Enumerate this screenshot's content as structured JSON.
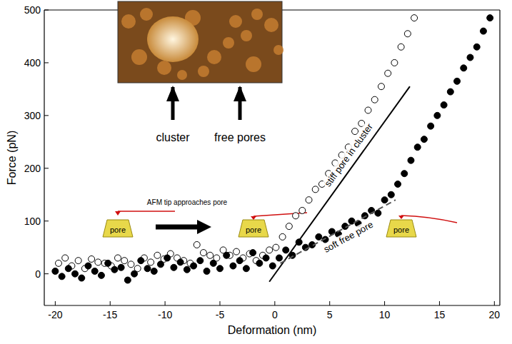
{
  "chart_data": {
    "type": "scatter",
    "x_label": "Deformation (nm)",
    "y_label": "Force (pN)",
    "xlim": [
      -21,
      20.5
    ],
    "ylim": [
      -60,
      500
    ],
    "xticks": [
      -20,
      -15,
      -10,
      -5,
      0,
      5,
      10,
      15,
      20
    ],
    "yticks": [
      0,
      100,
      200,
      300,
      400,
      500
    ],
    "grid": false,
    "series": [
      {
        "color": "#000000",
        "marker": "open-circle",
        "x": [
          -19.7,
          -19.1,
          -18.5,
          -17.9,
          -17.3,
          -16.7,
          -16.1,
          -15.5,
          -14.9,
          -14.3,
          -13.7,
          -13.1,
          -12.5,
          -11.9,
          -11.3,
          -10.7,
          -10.1,
          -9.5,
          -8.9,
          -8.3,
          -7.7,
          -7.1,
          -6.5,
          -5.9,
          -5.3,
          -4.7,
          -4.1,
          -3.5,
          -2.9,
          -2.3,
          -1.7,
          -1.1,
          -0.5,
          0.1,
          0.7,
          1.3,
          1.9,
          2.5,
          3.1,
          3.7,
          4.3,
          4.9,
          5.5,
          6.1,
          6.7,
          7.3,
          7.9,
          8.5,
          9.1,
          9.7,
          10.3,
          10.9,
          11.5,
          12.1,
          12.7
        ],
        "values": [
          20,
          30,
          15,
          25,
          10,
          28,
          22,
          20,
          15,
          30,
          25,
          18,
          10,
          30,
          22,
          35,
          28,
          38,
          30,
          25,
          20,
          55,
          40,
          35,
          30,
          45,
          35,
          42,
          30,
          38,
          25,
          35,
          45,
          50,
          70,
          90,
          110,
          120,
          140,
          160,
          170,
          190,
          210,
          225,
          240,
          270,
          285,
          310,
          330,
          355,
          380,
          400,
          430,
          455,
          485
        ]
      },
      {
        "color": "#000000",
        "marker": "circle",
        "x": [
          -20,
          -19.4,
          -18.8,
          -18.2,
          -17.6,
          -17,
          -16.4,
          -15.8,
          -15.2,
          -14.6,
          -14,
          -13.4,
          -12.8,
          -12.2,
          -11.6,
          -11,
          -10.4,
          -9.8,
          -9.2,
          -8.6,
          -8,
          -7.4,
          -6.8,
          -6.2,
          -5.6,
          -5,
          -4.4,
          -3.8,
          -3.2,
          -2.6,
          -2,
          -1.4,
          -0.8,
          -0.2,
          0.4,
          1,
          1.6,
          2.2,
          2.8,
          3.4,
          4,
          4.6,
          5.2,
          5.8,
          6.4,
          7,
          7.6,
          8.2,
          8.8,
          9.4,
          10,
          10.6,
          11.2,
          11.8,
          12.4,
          13,
          13.6,
          14.2,
          14.8,
          15.4,
          16,
          16.6,
          17.2,
          17.8,
          18.4,
          19,
          19.6
        ],
        "values": [
          5,
          -5,
          10,
          0,
          -8,
          15,
          5,
          -3,
          20,
          8,
          12,
          -12,
          0,
          25,
          10,
          5,
          18,
          30,
          12,
          22,
          8,
          15,
          25,
          5,
          20,
          10,
          35,
          15,
          25,
          10,
          40,
          20,
          30,
          15,
          30,
          45,
          35,
          60,
          50,
          55,
          70,
          65,
          80,
          75,
          90,
          100,
          95,
          110,
          120,
          115,
          140,
          150,
          170,
          190,
          215,
          240,
          255,
          280,
          300,
          320,
          345,
          365,
          390,
          410,
          430,
          460,
          485
        ]
      },
      {
        "name": "stiff pore in cluster",
        "type": "line",
        "color": "#000000",
        "line_style": "solid",
        "x": [
          -0.5,
          12.3
        ],
        "values": [
          -15,
          355
        ]
      },
      {
        "name": "soft free pore",
        "type": "line",
        "color": "#555555",
        "line_style": "dashed",
        "x": [
          0.5,
          11
        ],
        "values": [
          20,
          140
        ]
      }
    ],
    "inset": {
      "labels": [
        "cluster",
        "free pores"
      ]
    },
    "tip_diagram": {
      "caption": "AFM tip approaches pore",
      "pore_label": "pore"
    }
  }
}
